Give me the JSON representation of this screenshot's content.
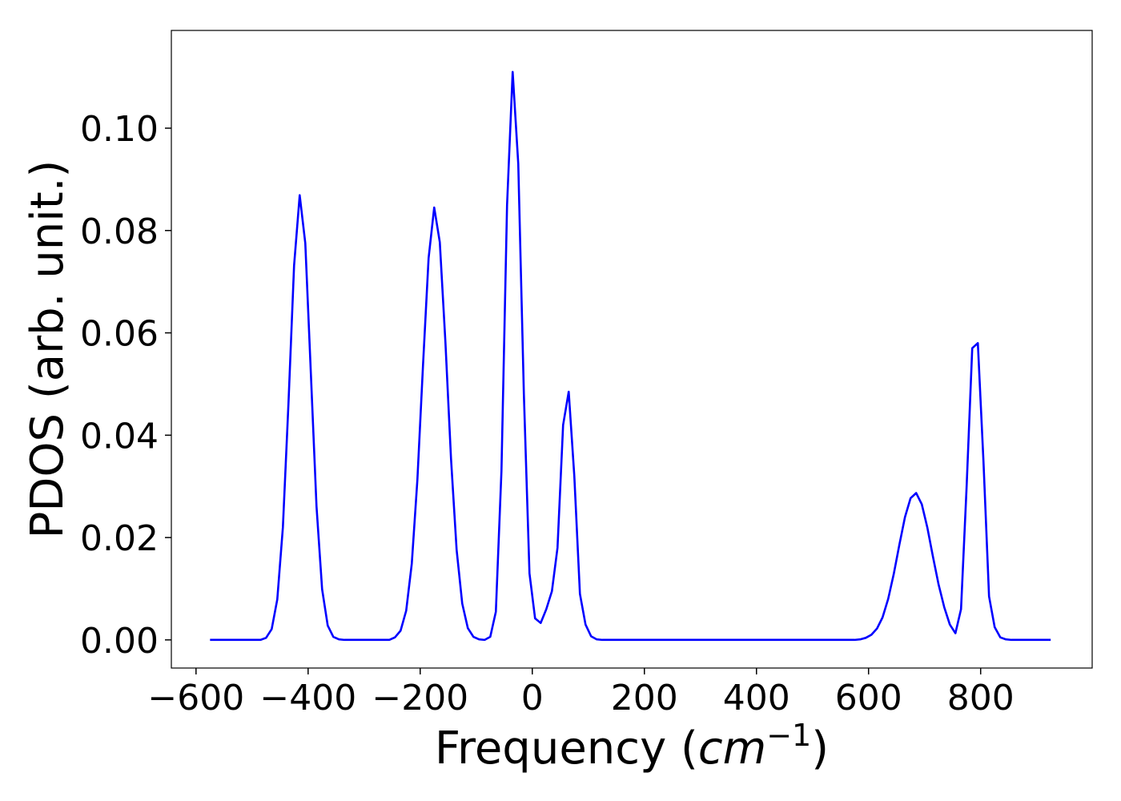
{
  "chart_data": {
    "type": "line",
    "x_label": {
      "text": "Frequency (",
      "italic": "cm",
      "superscript": "−1",
      "suffix": ")"
    },
    "y_label": "PDOS (arb. unit.)",
    "color": "#0000ff",
    "x": [
      -575,
      -565,
      -555,
      -545,
      -535,
      -525,
      -515,
      -505,
      -495,
      -485,
      -475,
      -465,
      -455,
      -445,
      -435,
      -425,
      -415,
      -405,
      -395,
      -385,
      -375,
      -365,
      -355,
      -345,
      -335,
      -325,
      -315,
      -305,
      -295,
      -285,
      -275,
      -265,
      -255,
      -245,
      -235,
      -225,
      -215,
      -205,
      -195,
      -185,
      -175,
      -165,
      -155,
      -145,
      -135,
      -125,
      -115,
      -105,
      -95,
      -85,
      -75,
      -65,
      -55,
      -45,
      -35,
      -25,
      -15,
      -5,
      5,
      15,
      25,
      35,
      45,
      55,
      65,
      75,
      85,
      95,
      105,
      115,
      125,
      135,
      145,
      155,
      165,
      175,
      185,
      195,
      205,
      215,
      225,
      235,
      245,
      255,
      265,
      275,
      285,
      295,
      305,
      315,
      325,
      335,
      345,
      355,
      365,
      375,
      385,
      395,
      405,
      415,
      425,
      435,
      445,
      455,
      465,
      475,
      485,
      495,
      505,
      515,
      525,
      535,
      545,
      555,
      565,
      575,
      585,
      595,
      605,
      615,
      625,
      635,
      645,
      655,
      665,
      675,
      685,
      695,
      705,
      715,
      725,
      735,
      745,
      755,
      765,
      775,
      785,
      795,
      805,
      815,
      825,
      835,
      845,
      855,
      865,
      875,
      885,
      895,
      905,
      915,
      925
    ],
    "values": [
      0,
      0,
      0,
      0,
      0,
      0,
      0,
      0,
      0,
      0,
      0.0004,
      0.0021,
      0.0079,
      0.022,
      0.0463,
      0.0732,
      0.0869,
      0.0775,
      0.0519,
      0.0261,
      0.0099,
      0.0028,
      0.0006,
      0.0001,
      0,
      0,
      0,
      0,
      0,
      0,
      0,
      0,
      0,
      0.0005,
      0.0018,
      0.0057,
      0.0149,
      0.0313,
      0.0536,
      0.0746,
      0.0845,
      0.0777,
      0.0582,
      0.0354,
      0.0176,
      0.0071,
      0.0023,
      0.0006,
      0.0001,
      0,
      0.0006,
      0.0055,
      0.033,
      0.085,
      0.111,
      0.093,
      0.048,
      0.013,
      0.0042,
      0.0033,
      0.006,
      0.0095,
      0.018,
      0.042,
      0.0485,
      0.032,
      0.009,
      0.003,
      0.0007,
      0.0001,
      0,
      0,
      0,
      0,
      0,
      0,
      0,
      0,
      0,
      0,
      0,
      0,
      0,
      0,
      0,
      0,
      0,
      0,
      0,
      0,
      0,
      0,
      0,
      0,
      0,
      0,
      0,
      0,
      0,
      0,
      0,
      0,
      0,
      0,
      0,
      0,
      0,
      0,
      0,
      0,
      0,
      0,
      0,
      0,
      0,
      0,
      0.0001,
      0.0004,
      0.001,
      0.0022,
      0.0044,
      0.008,
      0.0129,
      0.0186,
      0.024,
      0.0277,
      0.0287,
      0.0265,
      0.0219,
      0.0162,
      0.0108,
      0.0064,
      0.003,
      0.0013,
      0.006,
      0.03,
      0.057,
      0.058,
      0.035,
      0.0085,
      0.0025,
      0.0005,
      0.0001,
      0,
      0,
      0,
      0,
      0,
      0,
      0,
      0
    ],
    "xlim": [
      -644,
      999
    ],
    "ylim": [
      -0.0055,
      0.1191
    ],
    "xticks": [
      {
        "value": -600,
        "label": "−600"
      },
      {
        "value": -400,
        "label": "−400"
      },
      {
        "value": -200,
        "label": "−200"
      },
      0,
      200,
      400,
      600,
      800
    ],
    "yticks": [
      {
        "value": 0,
        "label": "0.00"
      },
      {
        "value": 0.02,
        "label": "0.02"
      },
      {
        "value": 0.04,
        "label": "0.04"
      },
      {
        "value": 0.06,
        "label": "0.06"
      },
      {
        "value": 0.08,
        "label": "0.08"
      },
      {
        "value": 0.1,
        "label": "0.10"
      }
    ],
    "grid": false
  }
}
